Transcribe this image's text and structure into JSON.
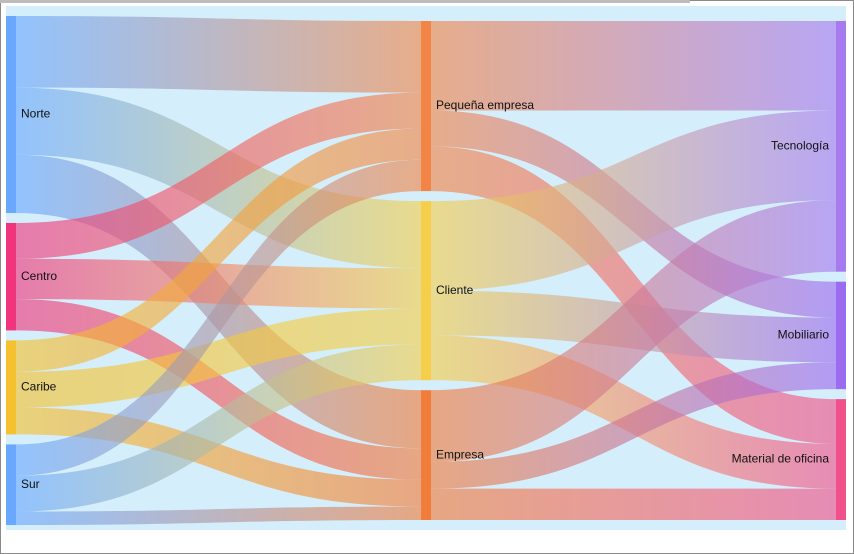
{
  "chart_data": {
    "type": "sankey",
    "title": "",
    "columns": [
      [
        "Norte",
        "Centro",
        "Caribe",
        "Sur"
      ],
      [
        "Pequeña empresa",
        "Cliente",
        "Empresa"
      ],
      [
        "Tecnología",
        "Mobiliario",
        "Material de oficina"
      ]
    ],
    "nodes": [
      {
        "name": "Norte",
        "color": "#6aa8ff"
      },
      {
        "name": "Centro",
        "color": "#f0357c"
      },
      {
        "name": "Caribe",
        "color": "#f5c12e"
      },
      {
        "name": "Sur",
        "color": "#6aa8ff"
      },
      {
        "name": "Pequeña empresa",
        "color": "#f28546"
      },
      {
        "name": "Cliente",
        "color": "#f5cf4a"
      },
      {
        "name": "Empresa",
        "color": "#f27c3a"
      },
      {
        "name": "Tecnología",
        "color": "#a77af0"
      },
      {
        "name": "Mobiliario",
        "color": "#9d6bf0"
      },
      {
        "name": "Material de oficina",
        "color": "#f2508a"
      }
    ],
    "links": [
      {
        "source": "Norte",
        "target": "Pequeña empresa",
        "value": 8
      },
      {
        "source": "Norte",
        "target": "Cliente",
        "value": 7.5
      },
      {
        "source": "Norte",
        "target": "Empresa",
        "value": 6.5
      },
      {
        "source": "Centro",
        "target": "Pequeña empresa",
        "value": 4
      },
      {
        "source": "Centro",
        "target": "Cliente",
        "value": 4.5
      },
      {
        "source": "Centro",
        "target": "Empresa",
        "value": 3.5
      },
      {
        "source": "Caribe",
        "target": "Pequeña empresa",
        "value": 3.5
      },
      {
        "source": "Caribe",
        "target": "Cliente",
        "value": 4
      },
      {
        "source": "Caribe",
        "target": "Empresa",
        "value": 3
      },
      {
        "source": "Sur",
        "target": "Pequeña empresa",
        "value": 3.5
      },
      {
        "source": "Sur",
        "target": "Cliente",
        "value": 4
      },
      {
        "source": "Sur",
        "target": "Empresa",
        "value": 1.5
      },
      {
        "source": "Pequeña empresa",
        "target": "Tecnología",
        "value": 10
      },
      {
        "source": "Pequeña empresa",
        "target": "Mobiliario",
        "value": 4
      },
      {
        "source": "Pequeña empresa",
        "target": "Material de oficina",
        "value": 5
      },
      {
        "source": "Cliente",
        "target": "Tecnología",
        "value": 10
      },
      {
        "source": "Cliente",
        "target": "Mobiliario",
        "value": 5
      },
      {
        "source": "Cliente",
        "target": "Material de oficina",
        "value": 5
      },
      {
        "source": "Empresa",
        "target": "Tecnología",
        "value": 8
      },
      {
        "source": "Empresa",
        "target": "Mobiliario",
        "value": 3
      },
      {
        "source": "Empresa",
        "target": "Material de oficina",
        "value": 3.5
      }
    ]
  }
}
